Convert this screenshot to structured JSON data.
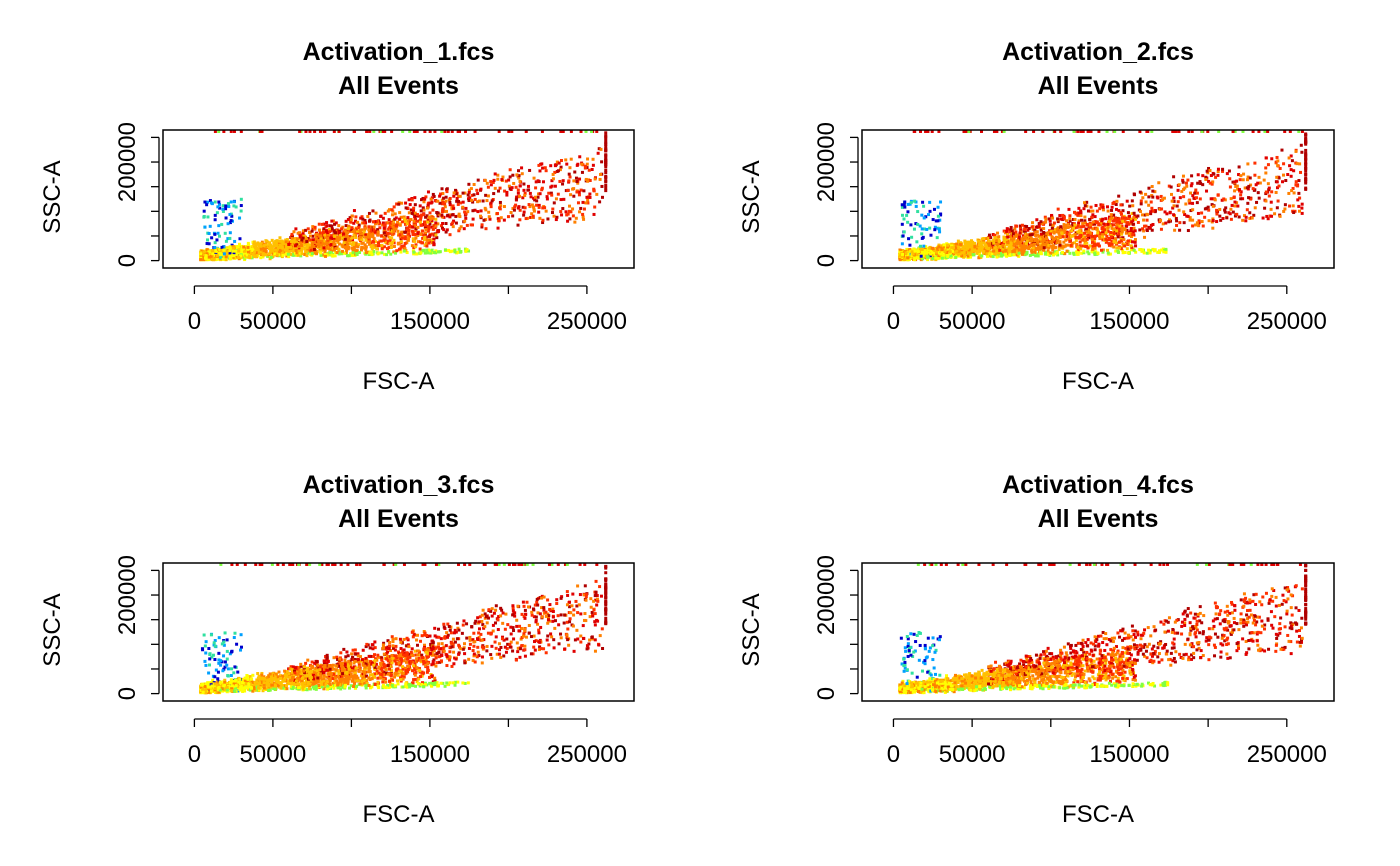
{
  "chart_data": [
    {
      "type": "scatter",
      "title": "Activation_1.fcs",
      "subtitle": "All Events",
      "xlabel": "FSC-A",
      "ylabel": "SSC-A",
      "xlim": [
        -20000,
        280000
      ],
      "ylim": [
        -15000,
        265000
      ],
      "xticks": [
        0,
        50000,
        100000,
        150000,
        200000,
        250000
      ],
      "xtick_labels": [
        "0",
        "50000",
        "",
        "150000",
        "",
        "250000"
      ],
      "yticks": [
        0,
        50000,
        100000,
        150000,
        200000,
        250000
      ],
      "ytick_labels": [
        "0",
        "",
        "",
        "",
        "200000",
        ""
      ],
      "density_colors": [
        "#0000cc",
        "#00a0ff",
        "#30e0a0",
        "#80ff40",
        "#ffff00",
        "#ffc000",
        "#ff8000",
        "#ff3000",
        "#e00000",
        "#b00000"
      ],
      "grid": false,
      "legend": "none",
      "seed": 11
    },
    {
      "type": "scatter",
      "title": "Activation_2.fcs",
      "subtitle": "All Events",
      "xlabel": "FSC-A",
      "ylabel": "SSC-A",
      "xlim": [
        -20000,
        280000
      ],
      "ylim": [
        -15000,
        265000
      ],
      "xticks": [
        0,
        50000,
        100000,
        150000,
        200000,
        250000
      ],
      "xtick_labels": [
        "0",
        "50000",
        "",
        "150000",
        "",
        "250000"
      ],
      "yticks": [
        0,
        50000,
        100000,
        150000,
        200000,
        250000
      ],
      "ytick_labels": [
        "0",
        "",
        "",
        "",
        "200000",
        ""
      ],
      "density_colors": [
        "#0000cc",
        "#00a0ff",
        "#30e0a0",
        "#80ff40",
        "#ffff00",
        "#ffc000",
        "#ff8000",
        "#ff3000",
        "#e00000",
        "#b00000"
      ],
      "grid": false,
      "legend": "none",
      "seed": 23
    },
    {
      "type": "scatter",
      "title": "Activation_3.fcs",
      "subtitle": "All Events",
      "xlabel": "FSC-A",
      "ylabel": "SSC-A",
      "xlim": [
        -20000,
        280000
      ],
      "ylim": [
        -15000,
        265000
      ],
      "xticks": [
        0,
        50000,
        100000,
        150000,
        200000,
        250000
      ],
      "xtick_labels": [
        "0",
        "50000",
        "",
        "150000",
        "",
        "250000"
      ],
      "yticks": [
        0,
        50000,
        100000,
        150000,
        200000,
        250000
      ],
      "ytick_labels": [
        "0",
        "",
        "",
        "",
        "200000",
        ""
      ],
      "density_colors": [
        "#0000cc",
        "#00a0ff",
        "#30e0a0",
        "#80ff40",
        "#ffff00",
        "#ffc000",
        "#ff8000",
        "#ff3000",
        "#e00000",
        "#b00000"
      ],
      "grid": false,
      "legend": "none",
      "seed": 37
    },
    {
      "type": "scatter",
      "title": "Activation_4.fcs",
      "subtitle": "All Events",
      "xlabel": "FSC-A",
      "ylabel": "SSC-A",
      "xlim": [
        -20000,
        280000
      ],
      "ylim": [
        -15000,
        265000
      ],
      "xticks": [
        0,
        50000,
        100000,
        150000,
        200000,
        250000
      ],
      "xtick_labels": [
        "0",
        "50000",
        "",
        "150000",
        "",
        "250000"
      ],
      "yticks": [
        0,
        50000,
        100000,
        150000,
        200000,
        250000
      ],
      "ytick_labels": [
        "0",
        "",
        "",
        "",
        "200000",
        ""
      ],
      "density_colors": [
        "#0000cc",
        "#00a0ff",
        "#30e0a0",
        "#80ff40",
        "#ffff00",
        "#ffc000",
        "#ff8000",
        "#ff3000",
        "#e00000",
        "#b00000"
      ],
      "grid": false,
      "legend": "none",
      "seed": 41
    }
  ]
}
